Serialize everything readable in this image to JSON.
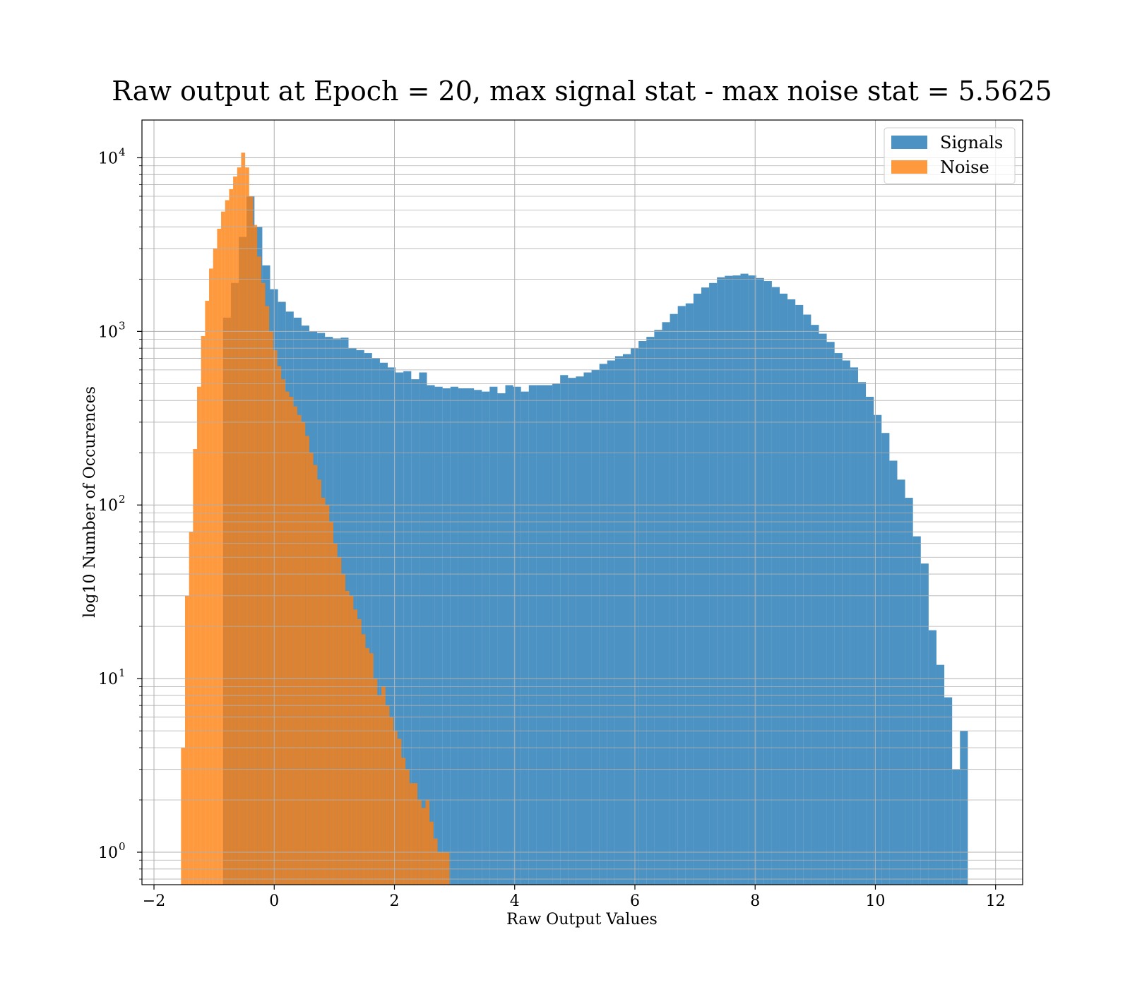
{
  "chart_data": {
    "type": "bar",
    "title": "Raw output at Epoch = 20, max signal stat - max noise stat = 5.5625",
    "xlabel": "Raw Output Values",
    "ylabel": "log10 Number of Occurences",
    "xlim": [
      -2.2,
      12.45
    ],
    "ylim": [
      0.65,
      16500
    ],
    "yscale": "log",
    "grid": true,
    "legend_position": "top-right",
    "x_ticks": [
      {
        "value": -2,
        "label": "−2"
      },
      {
        "value": 0,
        "label": "0"
      },
      {
        "value": 2,
        "label": "2"
      },
      {
        "value": 4,
        "label": "4"
      },
      {
        "value": 6,
        "label": "6"
      },
      {
        "value": 8,
        "label": "8"
      },
      {
        "value": 10,
        "label": "10"
      },
      {
        "value": 12,
        "label": "12"
      }
    ],
    "y_ticks": [
      {
        "value": 1,
        "base": "10",
        "exp": "0"
      },
      {
        "value": 10,
        "base": "10",
        "exp": "1"
      },
      {
        "value": 100,
        "base": "10",
        "exp": "2"
      },
      {
        "value": 1000,
        "base": "10",
        "exp": "3"
      },
      {
        "value": 10000,
        "base": "10",
        "exp": "4"
      }
    ],
    "series": [
      {
        "name": "Signals",
        "color": "#1f77b4",
        "opacity": 0.8,
        "bin_start": -0.85,
        "bin_width": 0.1304,
        "values": [
          1200,
          1900,
          3500,
          6000,
          4000,
          2400,
          1750,
          1480,
          1300,
          1200,
          1080,
          1000,
          980,
          930,
          910,
          920,
          800,
          780,
          750,
          700,
          660,
          620,
          580,
          590,
          530,
          580,
          490,
          480,
          470,
          480,
          470,
          470,
          460,
          450,
          480,
          440,
          490,
          480,
          450,
          490,
          490,
          490,
          500,
          560,
          540,
          550,
          580,
          600,
          650,
          680,
          720,
          740,
          800,
          880,
          930,
          1020,
          1130,
          1260,
          1400,
          1450,
          1650,
          1790,
          1900,
          2050,
          2090,
          2100,
          2150,
          2100,
          2030,
          1950,
          1800,
          1650,
          1530,
          1420,
          1250,
          1090,
          970,
          870,
          750,
          680,
          620,
          510,
          420,
          330,
          260,
          180,
          140,
          110,
          66,
          46,
          19,
          12,
          7.8,
          3,
          5
        ]
      },
      {
        "name": "Noise",
        "color": "#ff7f0e",
        "opacity": 0.8,
        "bin_start": -1.55,
        "bin_width": 0.06667,
        "values": [
          4,
          30,
          70,
          210,
          480,
          940,
          1500,
          2300,
          3000,
          3900,
          4900,
          5700,
          6600,
          7800,
          8800,
          10700,
          8800,
          6000,
          4100,
          2700,
          1900,
          1400,
          1000,
          780,
          630,
          530,
          450,
          420,
          370,
          330,
          300,
          250,
          200,
          170,
          140,
          110,
          100,
          80,
          60,
          50,
          40,
          32,
          30,
          25,
          22,
          18,
          15,
          14,
          10,
          8,
          9,
          7,
          6,
          5,
          4.5,
          3.5,
          3,
          2.5,
          2.5,
          2,
          1.8,
          2,
          1.5,
          1.2,
          1,
          1,
          1
        ]
      }
    ]
  }
}
